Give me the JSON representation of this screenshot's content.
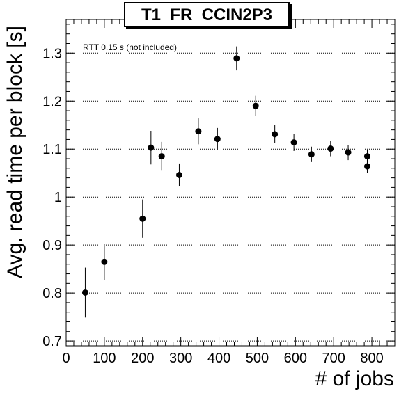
{
  "chart_data": {
    "type": "scatter",
    "title": "T1_FR_CCIN2P3",
    "xlabel": "# of jobs",
    "ylabel": "Avg. read time per block [s]",
    "annotation": "RTT 0.15 s (not included)",
    "xlim": [
      0,
      860
    ],
    "ylim": [
      0.69,
      1.37
    ],
    "x_ticks": [
      0,
      100,
      200,
      300,
      400,
      500,
      600,
      700,
      800
    ],
    "x_tick_labels": [
      "0",
      "100",
      "200",
      "300",
      "400",
      "500",
      "600",
      "700",
      "800"
    ],
    "y_ticks": [
      0.7,
      0.8,
      0.9,
      1.0,
      1.1,
      1.2,
      1.3
    ],
    "y_tick_labels": [
      "0.7",
      "0.8",
      "0.9",
      "1",
      "1.1",
      "1.2",
      "1.3"
    ],
    "grid": "horizontal dotted",
    "points": [
      {
        "x": 50,
        "y": 0.801,
        "err": 0.052
      },
      {
        "x": 100,
        "y": 0.865,
        "err": 0.038
      },
      {
        "x": 200,
        "y": 0.955,
        "err": 0.04
      },
      {
        "x": 222,
        "y": 1.103,
        "err": 0.035
      },
      {
        "x": 250,
        "y": 1.085,
        "err": 0.03
      },
      {
        "x": 296,
        "y": 1.046,
        "err": 0.024
      },
      {
        "x": 346,
        "y": 1.137,
        "err": 0.027
      },
      {
        "x": 396,
        "y": 1.121,
        "err": 0.023
      },
      {
        "x": 446,
        "y": 1.289,
        "err": 0.025
      },
      {
        "x": 496,
        "y": 1.19,
        "err": 0.021
      },
      {
        "x": 546,
        "y": 1.131,
        "err": 0.019
      },
      {
        "x": 596,
        "y": 1.114,
        "err": 0.018
      },
      {
        "x": 642,
        "y": 1.089,
        "err": 0.016
      },
      {
        "x": 692,
        "y": 1.101,
        "err": 0.016
      },
      {
        "x": 738,
        "y": 1.093,
        "err": 0.016
      },
      {
        "x": 788,
        "y": 1.085,
        "err": 0.014
      },
      {
        "x": 788,
        "y": 1.064,
        "err": 0.014
      }
    ],
    "marker_color": "#000000"
  }
}
